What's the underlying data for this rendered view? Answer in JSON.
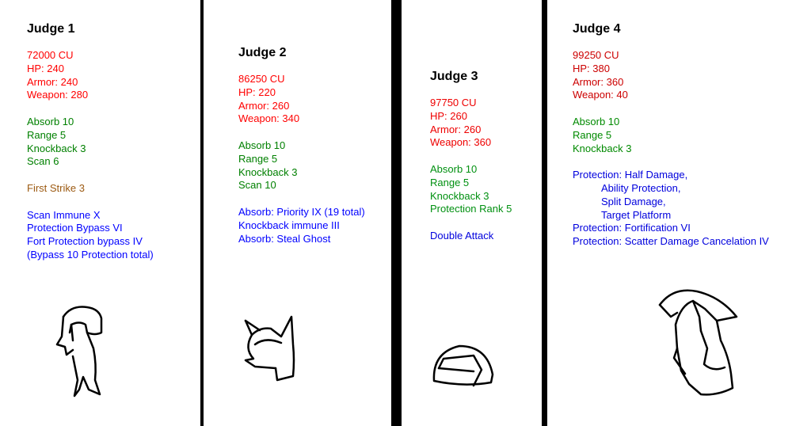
{
  "colors": {
    "background": "#ffffff",
    "divider": "#000000",
    "title": "#000000"
  },
  "judges": [
    {
      "title": "Judge 1",
      "groups": [
        {
          "color": "#ff0000",
          "lines": [
            {
              "text": "72000 CU"
            },
            {
              "text": "HP: 240"
            },
            {
              "text": "Armor: 240"
            },
            {
              "text": "Weapon: 280"
            }
          ]
        },
        {
          "color": "#008000",
          "lines": [
            {
              "text": "Absorb 10"
            },
            {
              "text": "Range 5"
            },
            {
              "text": "Knockback 3"
            },
            {
              "text": "Scan 6"
            }
          ]
        },
        {
          "color": "#9c5a12",
          "lines": [
            {
              "text": "First Strike 3"
            }
          ]
        },
        {
          "color": "#0000ff",
          "lines": [
            {
              "text": "Scan Immune X"
            },
            {
              "text": "Protection Bypass VI"
            },
            {
              "text": "Fort Protection bypass IV"
            },
            {
              "text": "(Bypass 10 Protection total)"
            }
          ]
        }
      ]
    },
    {
      "title": "Judge 2",
      "groups": [
        {
          "color": "#ff0000",
          "lines": [
            {
              "text": "86250 CU"
            },
            {
              "text": "HP: 220"
            },
            {
              "text": "Armor: 260"
            },
            {
              "text": "Weapon: 340"
            }
          ]
        },
        {
          "color": "#008000",
          "lines": [
            {
              "text": "Absorb 10"
            },
            {
              "text": "Range 5"
            },
            {
              "text": "Knockback 3"
            },
            {
              "text": "Scan 10"
            }
          ]
        },
        {
          "color": "#0000ff",
          "lines": [
            {
              "text": "Absorb: Priority IX (19 total)"
            },
            {
              "text": "Knockback immune III"
            },
            {
              "text": "Absorb: Steal Ghost"
            }
          ]
        }
      ]
    },
    {
      "title": "Judge 3",
      "groups": [
        {
          "color": "#ee0000",
          "lines": [
            {
              "text": "97750 CU"
            },
            {
              "text": "HP: 260"
            },
            {
              "text": "Armor: 260"
            },
            {
              "text": "Weapon: 360"
            }
          ]
        },
        {
          "color": "#009010",
          "lines": [
            {
              "text": "Absorb 10"
            },
            {
              "text": "Range 5"
            },
            {
              "text": "Knockback 3"
            },
            {
              "text": "Protection Rank 5"
            }
          ]
        },
        {
          "color": "#0000dd",
          "lines": [
            {
              "text": "Double Attack"
            }
          ]
        }
      ]
    },
    {
      "title": "Judge 4",
      "groups": [
        {
          "color": "#cc0000",
          "lines": [
            {
              "text": "99250 CU"
            },
            {
              "text": "HP: 380"
            },
            {
              "text": "Armor: 360"
            },
            {
              "text": "Weapon: 40"
            }
          ]
        },
        {
          "color": "#008a00",
          "lines": [
            {
              "text": "Absorb 10"
            },
            {
              "text": "Range 5"
            },
            {
              "text": "Knockback 3"
            }
          ]
        },
        {
          "color": "#0000dd",
          "lines": [
            {
              "text": "Protection: Half Damage,"
            },
            {
              "text": "Ability Protection,",
              "indent": true
            },
            {
              "text": "Split Damage,",
              "indent": true
            },
            {
              "text": "Target Platform",
              "indent": true
            },
            {
              "text": "Protection: Fortification VI"
            },
            {
              "text": "Protection: Scatter Damage Cancelation IV"
            }
          ]
        }
      ]
    }
  ]
}
